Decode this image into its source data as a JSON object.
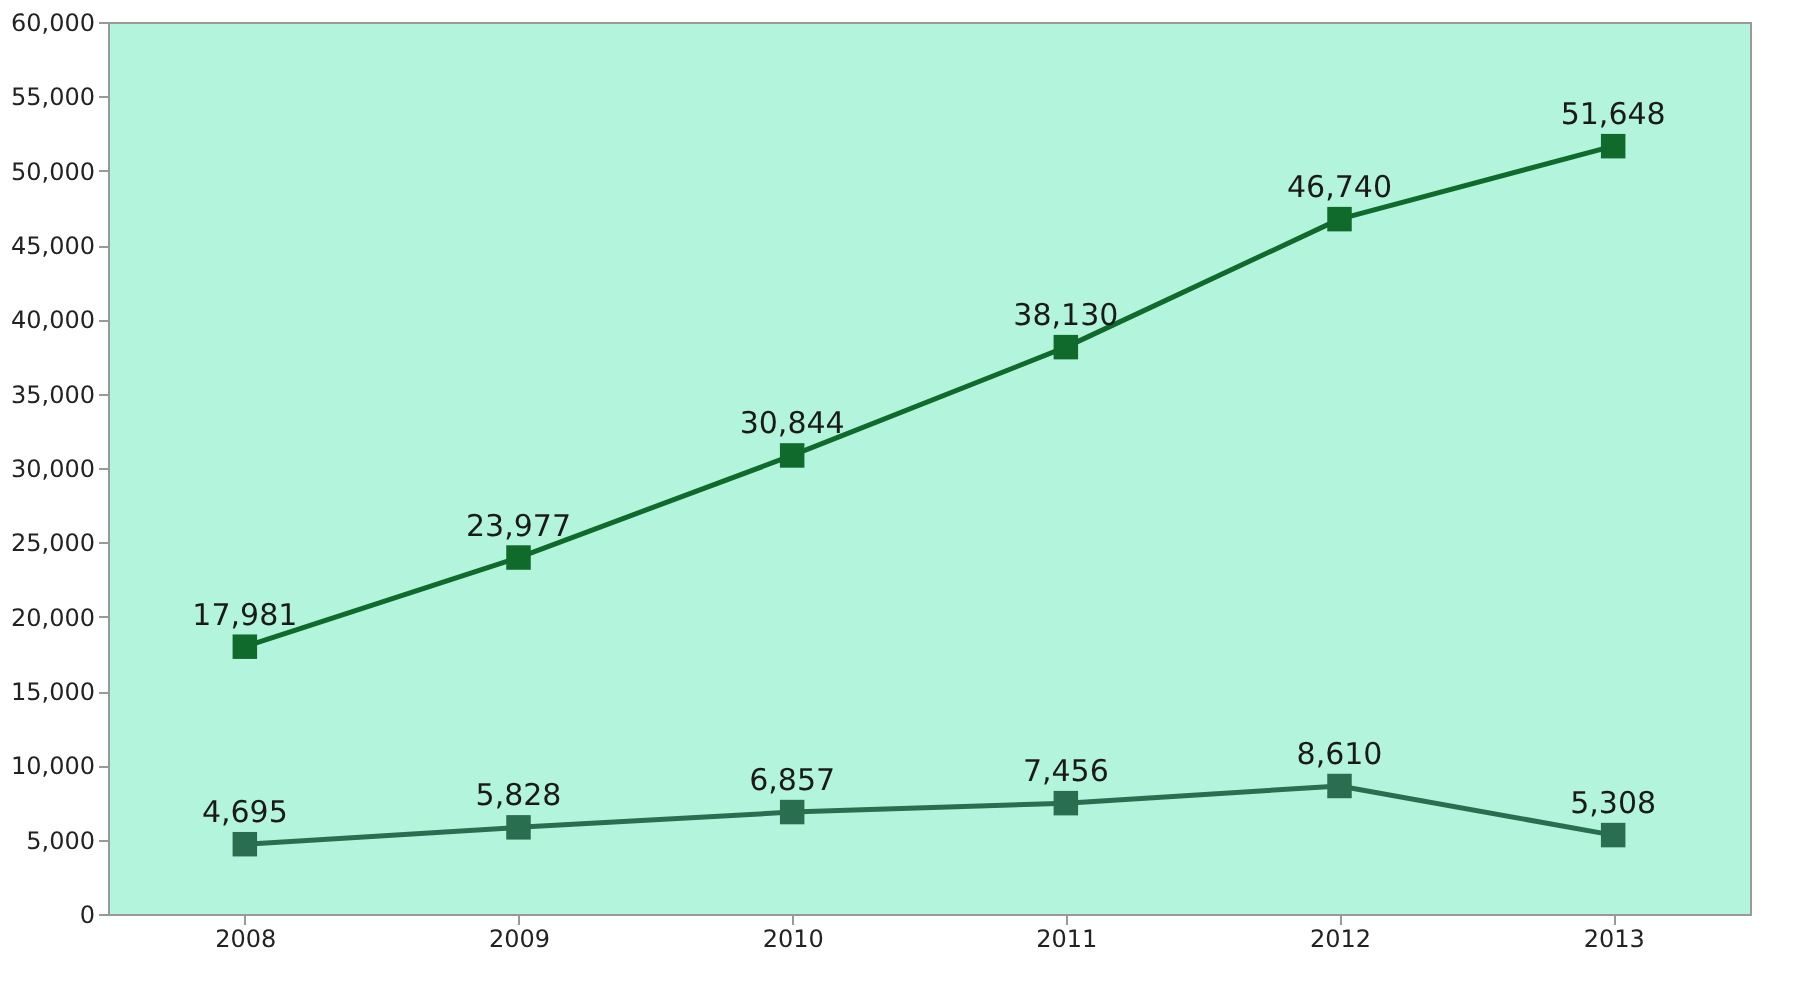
{
  "chart_data": {
    "type": "line",
    "categories": [
      "2008",
      "2009",
      "2010",
      "2011",
      "2012",
      "2013"
    ],
    "series": [
      {
        "color": "#2a6e50",
        "values": [
          4695,
          5828,
          6857,
          7456,
          8610,
          5308
        ],
        "value_labels": [
          "4,695",
          "5,828",
          "6,857",
          "7,456",
          "8,610",
          "5,308"
        ]
      },
      {
        "color": "#0f6a2c",
        "values": [
          17981,
          23977,
          30844,
          38130,
          46740,
          51648
        ],
        "value_labels": [
          "17,981",
          "23,977",
          "30,844",
          "38,130",
          "46,740",
          "51,648"
        ]
      }
    ],
    "ylim": [
      0,
      60000
    ],
    "yticks": [
      {
        "value": 0,
        "label": "0"
      },
      {
        "value": 5000,
        "label": "5,000"
      },
      {
        "value": 10000,
        "label": "10,000"
      },
      {
        "value": 15000,
        "label": "15,000"
      },
      {
        "value": 20000,
        "label": "20,000"
      },
      {
        "value": 25000,
        "label": "25,000"
      },
      {
        "value": 30000,
        "label": "30,000"
      },
      {
        "value": 35000,
        "label": "35,000"
      },
      {
        "value": 40000,
        "label": "40,000"
      },
      {
        "value": 45000,
        "label": "45,000"
      },
      {
        "value": 50000,
        "label": "50,000"
      },
      {
        "value": 55000,
        "label": "55,000"
      },
      {
        "value": 60000,
        "label": "60,000"
      }
    ],
    "marker": "square"
  }
}
